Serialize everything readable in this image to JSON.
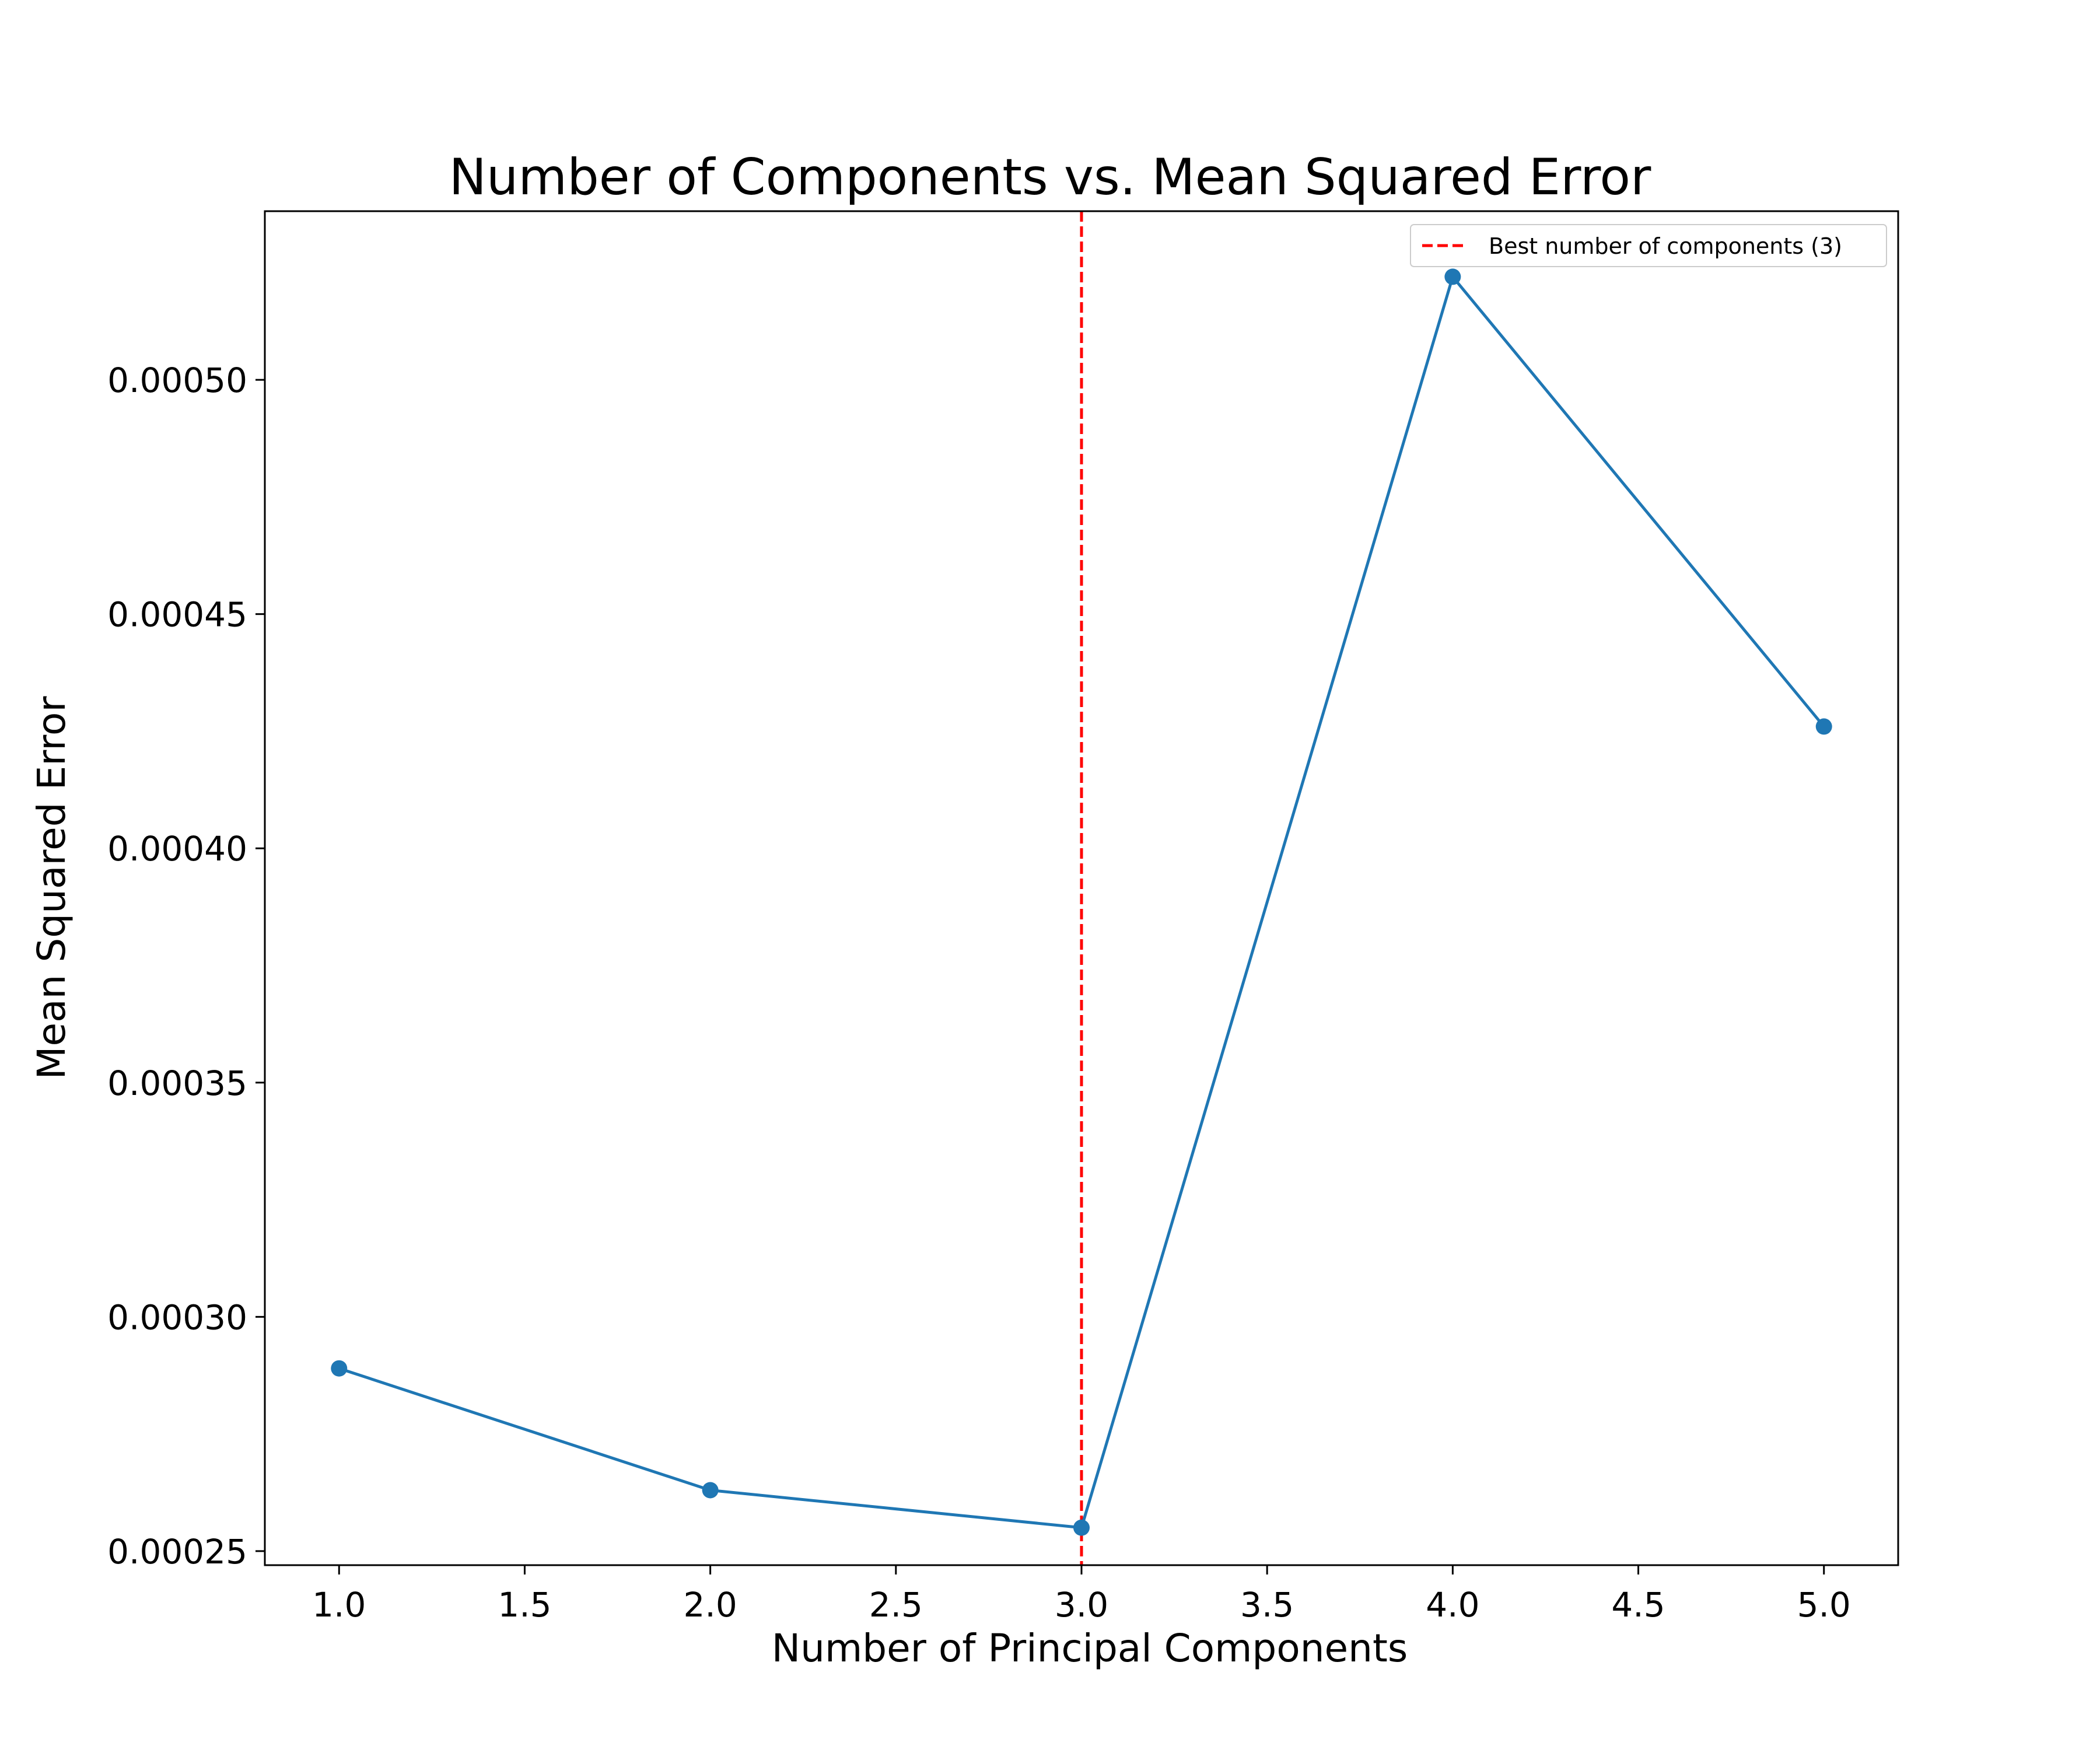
{
  "chart_data": {
    "type": "line",
    "title": "Number of Components vs. Mean Squared Error",
    "xlabel": "Number of Principal Components",
    "ylabel": "Mean Squared Error",
    "xlim": [
      0.8,
      5.2
    ],
    "ylim": [
      0.000247,
      0.000536
    ],
    "x_ticks": [
      1.0,
      1.5,
      2.0,
      2.5,
      3.0,
      3.5,
      4.0,
      4.5,
      5.0
    ],
    "x_tick_labels": [
      "1.0",
      "1.5",
      "2.0",
      "2.5",
      "3.0",
      "3.5",
      "4.0",
      "4.5",
      "5.0"
    ],
    "y_ticks": [
      0.00025,
      0.0003,
      0.00035,
      0.0004,
      0.00045,
      0.0005
    ],
    "y_tick_labels": [
      "0.00025",
      "0.00030",
      "0.00035",
      "0.00040",
      "0.00045",
      "0.00050"
    ],
    "grid": false,
    "legend_position": "top-right",
    "series": [
      {
        "x": [
          1,
          2,
          3,
          4,
          5
        ],
        "values": [
          0.000289,
          0.000263,
          0.000255,
          0.000522,
          0.000426
        ],
        "color": "#1f77b4",
        "marker": "circle"
      }
    ],
    "reference_lines": [
      {
        "orientation": "vertical",
        "x": 3,
        "name": "Best number of components (3)",
        "color": "#ff0000",
        "style": "dashed"
      }
    ]
  }
}
